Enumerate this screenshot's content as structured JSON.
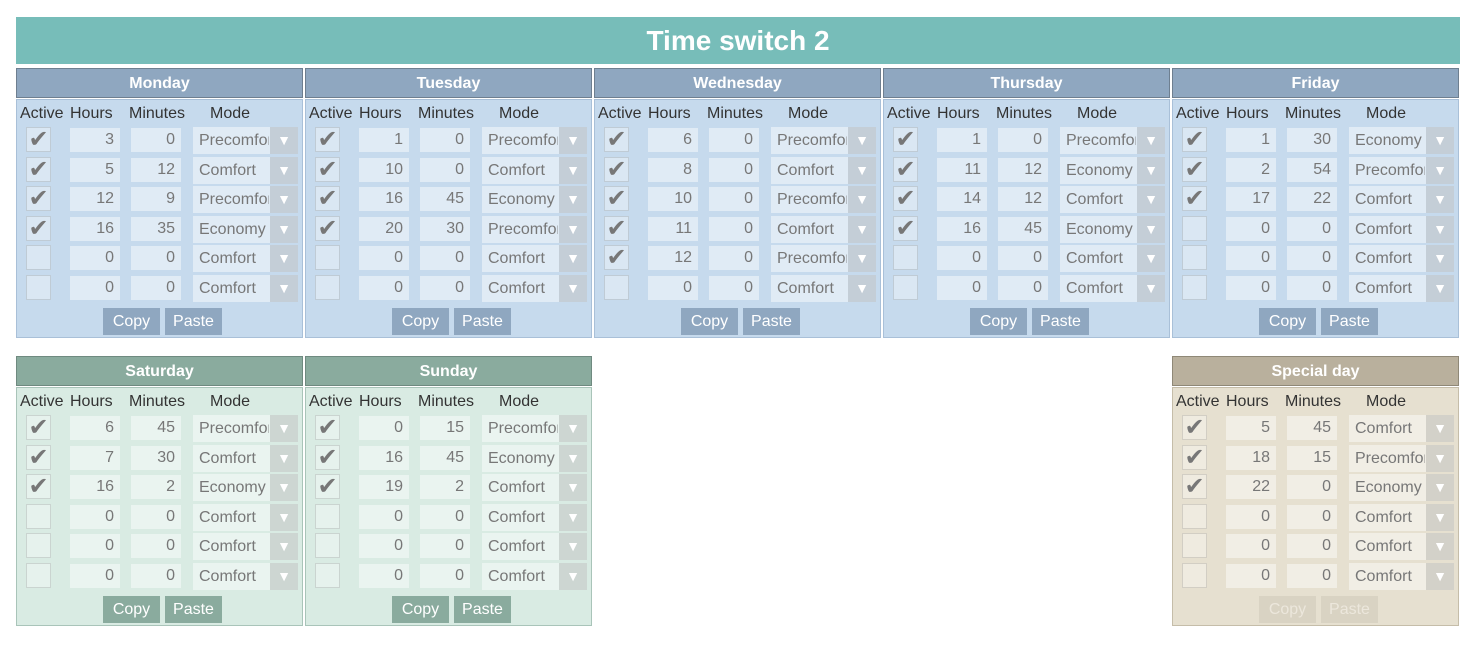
{
  "title": "Time switch 2",
  "columns": {
    "active": "Active",
    "hours": "Hours",
    "minutes": "Minutes",
    "mode": "Mode"
  },
  "buttons": {
    "copy": "Copy",
    "paste": "Paste"
  },
  "colors": {
    "title": "#77bdb9",
    "weekday": "#8fa7c0",
    "weekend": "#8aab9e",
    "special": "#b9b09d"
  },
  "days": [
    {
      "name": "Monday",
      "theme": "blue",
      "rows": [
        [
          true,
          3,
          0,
          "Precomfort"
        ],
        [
          true,
          5,
          12,
          "Comfort"
        ],
        [
          true,
          12,
          9,
          "Precomfort"
        ],
        [
          true,
          16,
          35,
          "Economy"
        ],
        [
          false,
          0,
          0,
          "Comfort"
        ],
        [
          false,
          0,
          0,
          "Comfort"
        ]
      ]
    },
    {
      "name": "Tuesday",
      "theme": "blue",
      "rows": [
        [
          true,
          1,
          0,
          "Precomfort"
        ],
        [
          true,
          10,
          0,
          "Comfort"
        ],
        [
          true,
          16,
          45,
          "Economy"
        ],
        [
          true,
          20,
          30,
          "Precomfort"
        ],
        [
          false,
          0,
          0,
          "Comfort"
        ],
        [
          false,
          0,
          0,
          "Comfort"
        ]
      ]
    },
    {
      "name": "Wednesday",
      "theme": "blue",
      "rows": [
        [
          true,
          6,
          0,
          "Precomfort"
        ],
        [
          true,
          8,
          0,
          "Comfort"
        ],
        [
          true,
          10,
          0,
          "Precomfort"
        ],
        [
          true,
          11,
          0,
          "Comfort"
        ],
        [
          true,
          12,
          0,
          "Precomfort"
        ],
        [
          false,
          0,
          0,
          "Comfort"
        ]
      ]
    },
    {
      "name": "Thursday",
      "theme": "blue",
      "rows": [
        [
          true,
          1,
          0,
          "Precomfort"
        ],
        [
          true,
          11,
          12,
          "Economy"
        ],
        [
          true,
          14,
          12,
          "Comfort"
        ],
        [
          true,
          16,
          45,
          "Economy"
        ],
        [
          false,
          0,
          0,
          "Comfort"
        ],
        [
          false,
          0,
          0,
          "Comfort"
        ]
      ]
    },
    {
      "name": "Friday",
      "theme": "blue",
      "rows": [
        [
          true,
          1,
          30,
          "Economy"
        ],
        [
          true,
          2,
          54,
          "Precomfort"
        ],
        [
          true,
          17,
          22,
          "Comfort"
        ],
        [
          false,
          0,
          0,
          "Comfort"
        ],
        [
          false,
          0,
          0,
          "Comfort"
        ],
        [
          false,
          0,
          0,
          "Comfort"
        ]
      ]
    },
    {
      "name": "Saturday",
      "theme": "green",
      "rows": [
        [
          true,
          6,
          45,
          "Precomfort"
        ],
        [
          true,
          7,
          30,
          "Comfort"
        ],
        [
          true,
          16,
          2,
          "Economy"
        ],
        [
          false,
          0,
          0,
          "Comfort"
        ],
        [
          false,
          0,
          0,
          "Comfort"
        ],
        [
          false,
          0,
          0,
          "Comfort"
        ]
      ]
    },
    {
      "name": "Sunday",
      "theme": "green",
      "rows": [
        [
          true,
          0,
          15,
          "Precomfort"
        ],
        [
          true,
          16,
          45,
          "Economy"
        ],
        [
          true,
          19,
          2,
          "Comfort"
        ],
        [
          false,
          0,
          0,
          "Comfort"
        ],
        [
          false,
          0,
          0,
          "Comfort"
        ],
        [
          false,
          0,
          0,
          "Comfort"
        ]
      ]
    },
    {
      "name": "Special day",
      "theme": "tan",
      "buttons_disabled": true,
      "rows": [
        [
          true,
          5,
          45,
          "Comfort"
        ],
        [
          true,
          18,
          15,
          "Precomfort"
        ],
        [
          true,
          22,
          0,
          "Economy"
        ],
        [
          false,
          0,
          0,
          "Comfort"
        ],
        [
          false,
          0,
          0,
          "Comfort"
        ],
        [
          false,
          0,
          0,
          "Comfort"
        ]
      ]
    }
  ]
}
